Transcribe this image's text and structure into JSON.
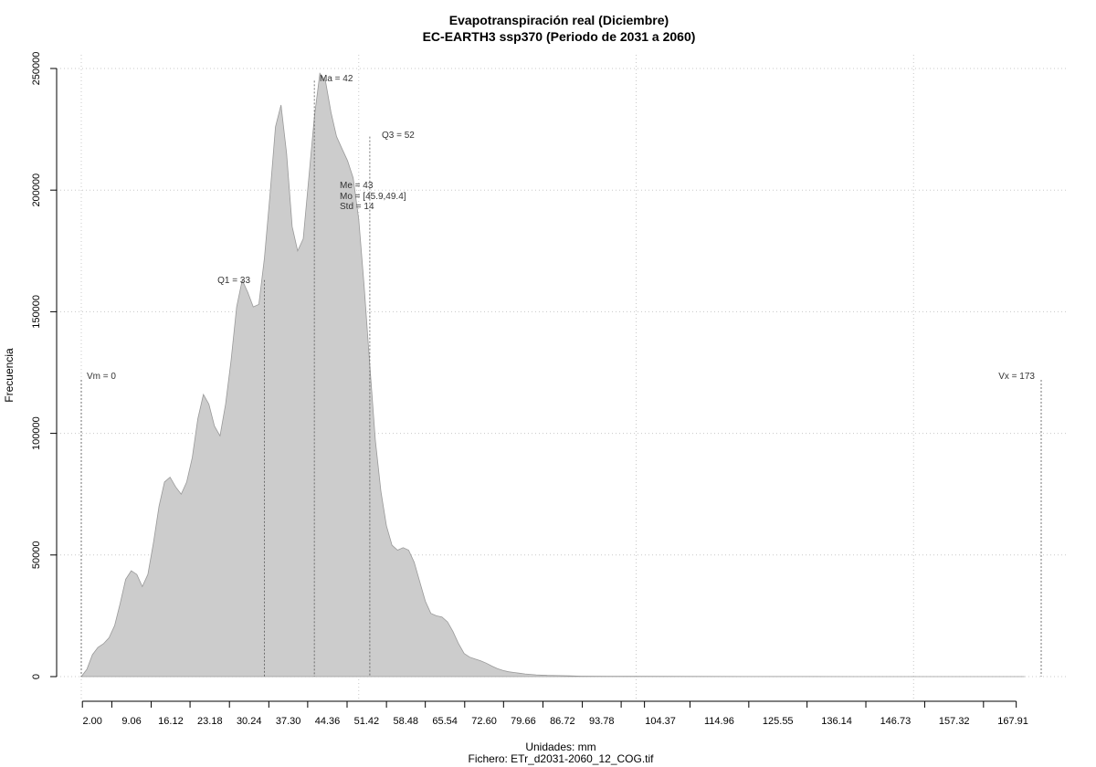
{
  "chart_data": {
    "type": "area",
    "title": "Evapotranspiración real (Diciembre)",
    "subtitle": "EC-EARTH3 ssp370 (Periodo de 2031 a 2060)",
    "xlabel": "Unidades: mm",
    "ylabel": "Frecuencia",
    "caption": "Fichero: ETr_d2031-2060_12_COG.tif",
    "xlim": [
      0,
      173
    ],
    "ylim": [
      0,
      250000
    ],
    "grid": true,
    "x_tick_values": [
      2.0,
      9.06,
      16.12,
      23.18,
      30.24,
      37.3,
      44.36,
      51.42,
      58.48,
      65.54,
      72.6,
      79.66,
      86.72,
      93.78,
      104.37,
      114.96,
      125.55,
      136.14,
      146.73,
      157.32,
      167.91
    ],
    "x_tick_labels": [
      "2.00",
      "9.06",
      "16.12",
      "23.18",
      "30.24",
      "37.30",
      "44.36",
      "51.42",
      "58.48",
      "65.54",
      "72.60",
      "79.66",
      "86.72",
      "93.78",
      "104.37",
      "114.96",
      "125.55",
      "136.14",
      "146.73",
      "157.32",
      "167.91"
    ],
    "x_minor_ticks": [
      0.2,
      5.5,
      12.6,
      19.6,
      26.7,
      33.8,
      40.8,
      47.9,
      55.0,
      62.0,
      69.1,
      76.1,
      83.2,
      90.3,
      97.3,
      101.5,
      109.7,
      120.3,
      130.8,
      141.4,
      152.0,
      162.6,
      168.5
    ],
    "y_ticks": [
      0,
      50000,
      100000,
      150000,
      200000,
      250000
    ],
    "y_tick_labels": [
      "0",
      "50000",
      "100000",
      "150000",
      "200000",
      "250000"
    ],
    "x_gridlines": [
      0,
      50,
      100,
      150
    ],
    "series": [
      {
        "x": [
          0,
          1,
          2,
          3,
          4,
          5,
          6,
          7,
          8,
          9,
          10,
          11,
          12,
          13,
          14,
          15,
          16,
          17,
          18,
          19,
          20,
          21,
          22,
          23,
          24,
          25,
          26,
          27,
          28,
          29,
          30,
          31,
          32,
          33,
          34,
          35,
          36,
          37,
          38,
          39,
          40,
          41,
          42,
          43,
          44,
          45,
          46,
          47,
          48,
          49,
          50,
          51,
          52,
          53,
          54,
          55,
          56,
          57,
          58,
          59,
          60,
          61,
          62,
          63,
          64,
          65,
          66,
          67,
          68,
          69,
          70,
          71,
          72,
          73,
          74,
          75,
          76,
          77,
          78,
          79,
          80,
          82,
          84,
          86,
          88,
          90,
          95,
          100,
          110,
          120,
          130,
          140,
          150,
          160,
          170
        ],
        "values": [
          0,
          3000,
          9000,
          12000,
          13500,
          16000,
          21000,
          30000,
          40000,
          43500,
          42000,
          37000,
          42000,
          55000,
          70000,
          80000,
          82000,
          78000,
          75000,
          80000,
          90000,
          106000,
          116000,
          112000,
          103000,
          99000,
          112000,
          130000,
          152000,
          163000,
          158000,
          152000,
          153000,
          172000,
          198000,
          226000,
          235000,
          215000,
          185000,
          175000,
          180000,
          205000,
          230000,
          248000,
          245000,
          232000,
          222000,
          217000,
          212000,
          205000,
          188000,
          160000,
          128000,
          97000,
          76000,
          62000,
          54000,
          52000,
          53000,
          52000,
          47000,
          39000,
          31000,
          26000,
          25000,
          24500,
          22500,
          18500,
          13500,
          9500,
          8000,
          7200,
          6500,
          5500,
          4300,
          3300,
          2500,
          2000,
          1700,
          1400,
          1100,
          700,
          500,
          400,
          300,
          200,
          150,
          100,
          60,
          40,
          25,
          15,
          10,
          5,
          0
        ]
      }
    ],
    "annotations": {
      "vm": "Vm = 0",
      "vx": "Vx = 173",
      "q1": "Q1 = 33",
      "ma": "Ma = 42",
      "q3": "Q3 = 52",
      "me": "Me = 43",
      "mo": "Mo = [45.9,49.4]",
      "std": "Std = 14"
    },
    "vlines": {
      "vm": {
        "x": 0,
        "y_top": 122000
      },
      "q1": {
        "x": 33,
        "y_top": 163000
      },
      "ma": {
        "x": 42,
        "y_top": 245000
      },
      "q3": {
        "x": 52,
        "y_top": 222000
      },
      "vx": {
        "x": 173,
        "y_top": 122000
      }
    },
    "colors": {
      "fill": "#cccccc",
      "stroke": "#999999",
      "grid": "#c8c8c8",
      "vline": "#555555"
    }
  }
}
